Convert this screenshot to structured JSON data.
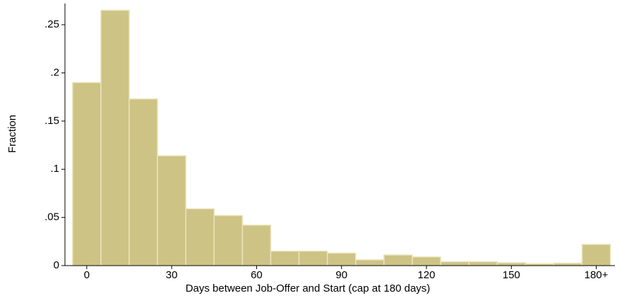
{
  "chart_data": {
    "type": "histogram",
    "xlabel": "Days between Job-Offer and Start (cap at 180 days)",
    "ylabel": "Fraction",
    "bins": [
      -5,
      5,
      15,
      25,
      35,
      45,
      55,
      65,
      75,
      85,
      95,
      105,
      115,
      125,
      135,
      145,
      155,
      165,
      175,
      185
    ],
    "values": [
      0.19,
      0.265,
      0.173,
      0.114,
      0.059,
      0.052,
      0.042,
      0.015,
      0.015,
      0.013,
      0.006,
      0.011,
      0.009,
      0.004,
      0.004,
      0.003,
      0.002,
      0.0025,
      0.022
    ],
    "color": "#cdc385",
    "xlim": [
      -7.7,
      186.6
    ],
    "xticks": [
      0,
      30,
      60,
      90,
      120,
      150,
      {
        "value": 180,
        "label": "180+"
      }
    ],
    "ylim": [
      0,
      0.272
    ],
    "yticks": [
      0,
      {
        "value": 0.05,
        "label": ".05"
      },
      {
        "value": 0.1,
        "label": ".1"
      },
      {
        "value": 0.15,
        "label": ".15"
      },
      {
        "value": 0.2,
        "label": ".2"
      },
      {
        "value": 0.25,
        "label": ".25"
      }
    ]
  }
}
